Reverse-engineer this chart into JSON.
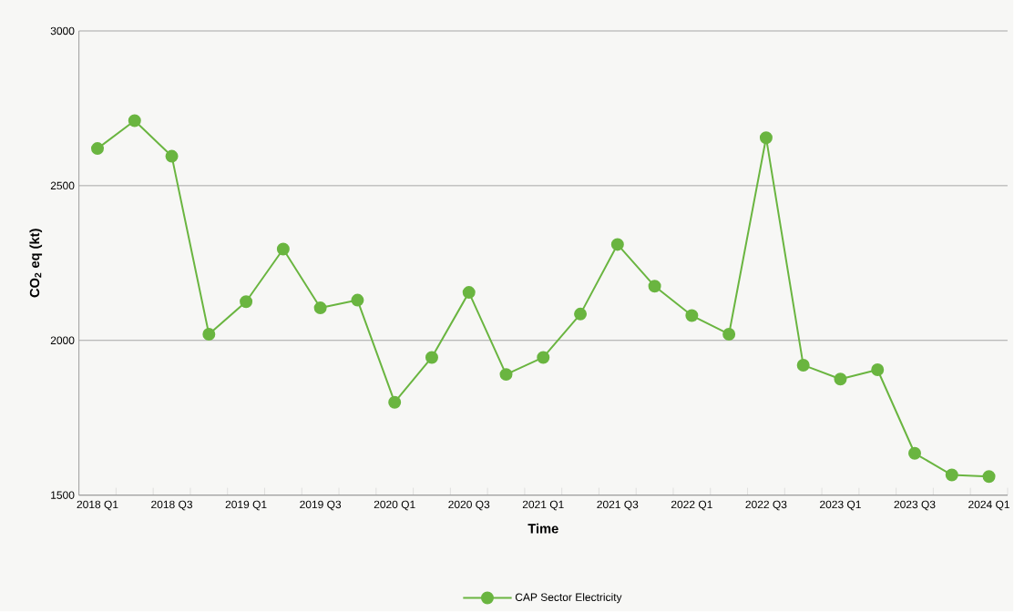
{
  "chart_data": {
    "type": "line",
    "xlabel": "Time",
    "ylabel": "CO$_{2}$ eq (kt)",
    "categories": [
      "2018 Q1",
      null,
      "2018 Q3",
      null,
      "2019 Q1",
      null,
      "2019 Q3",
      null,
      "2020 Q1",
      null,
      "2020 Q3",
      null,
      "2021 Q1",
      null,
      "2021 Q3",
      null,
      "2022 Q1",
      null,
      "2022 Q3",
      null,
      "2023 Q1",
      null,
      "2023 Q3",
      null,
      "2024 Q1"
    ],
    "series": [
      {
        "name": "CAP Sector Electricity",
        "color": "#6ab540",
        "values": [
          2620,
          2710,
          2595,
          2020,
          2125,
          2295,
          2105,
          2130,
          1800,
          1945,
          2155,
          1890,
          1945,
          2085,
          2310,
          2175,
          2080,
          2020,
          2655,
          1920,
          1875,
          1905,
          1635,
          1565,
          1560
        ]
      }
    ],
    "ylim": [
      1500,
      3000
    ],
    "yticks": [
      1500,
      2000,
      2500,
      3000
    ],
    "grid": "y",
    "legend": "bottom",
    "marker": "circle",
    "line_style": "solid"
  }
}
